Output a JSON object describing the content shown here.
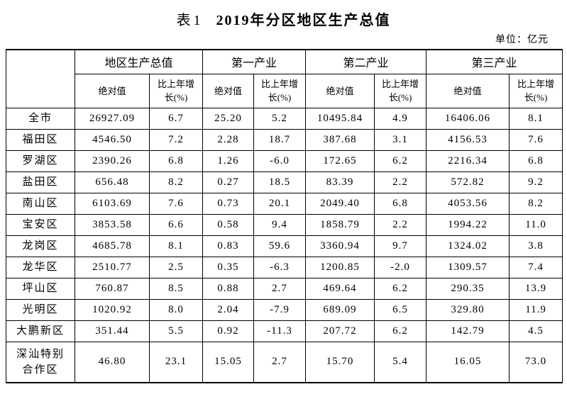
{
  "title": {
    "prefix": "表1",
    "main": "2019年分区地区生产总值"
  },
  "unit_note": "单位：亿元",
  "table": {
    "groups": [
      {
        "label": "地区生产总值"
      },
      {
        "label": "第一产业"
      },
      {
        "label": "第二产业"
      },
      {
        "label": "第三产业"
      }
    ],
    "columns": {
      "abs_label": "绝对值",
      "growth_label": "比上年增长(%)"
    },
    "rows": [
      {
        "region": "全市",
        "values": [
          "26927.09",
          "6.7",
          "25.20",
          "5.2",
          "10495.84",
          "4.9",
          "16406.06",
          "8.1"
        ]
      },
      {
        "region": "福田区",
        "values": [
          "4546.50",
          "7.2",
          "2.28",
          "18.7",
          "387.68",
          "3.1",
          "4156.53",
          "7.6"
        ]
      },
      {
        "region": "罗湖区",
        "values": [
          "2390.26",
          "6.8",
          "1.26",
          "-6.0",
          "172.65",
          "6.2",
          "2216.34",
          "6.8"
        ]
      },
      {
        "region": "盐田区",
        "values": [
          "656.48",
          "8.2",
          "0.27",
          "18.5",
          "83.39",
          "2.2",
          "572.82",
          "9.2"
        ]
      },
      {
        "region": "南山区",
        "values": [
          "6103.69",
          "7.6",
          "0.73",
          "20.1",
          "2049.40",
          "6.8",
          "4053.56",
          "8.2"
        ]
      },
      {
        "region": "宝安区",
        "values": [
          "3853.58",
          "6.6",
          "0.58",
          "9.4",
          "1858.79",
          "2.2",
          "1994.22",
          "11.0"
        ]
      },
      {
        "region": "龙岗区",
        "values": [
          "4685.78",
          "8.1",
          "0.83",
          "59.6",
          "3360.94",
          "9.7",
          "1324.02",
          "3.8"
        ]
      },
      {
        "region": "龙华区",
        "values": [
          "2510.77",
          "2.5",
          "0.35",
          "-6.3",
          "1200.85",
          "-2.0",
          "1309.57",
          "7.4"
        ]
      },
      {
        "region": "坪山区",
        "values": [
          "760.87",
          "8.5",
          "0.88",
          "2.7",
          "469.64",
          "6.2",
          "290.35",
          "13.9"
        ]
      },
      {
        "region": "光明区",
        "values": [
          "1020.92",
          "8.0",
          "2.04",
          "-7.9",
          "689.09",
          "6.5",
          "329.80",
          "11.9"
        ]
      },
      {
        "region": "大鹏新区",
        "values": [
          "351.44",
          "5.5",
          "0.92",
          "-11.3",
          "207.72",
          "6.2",
          "142.79",
          "4.5"
        ]
      },
      {
        "region": "深汕特别合作区",
        "values": [
          "46.80",
          "23.1",
          "15.05",
          "2.7",
          "15.70",
          "5.4",
          "16.05",
          "73.0"
        ]
      }
    ]
  }
}
